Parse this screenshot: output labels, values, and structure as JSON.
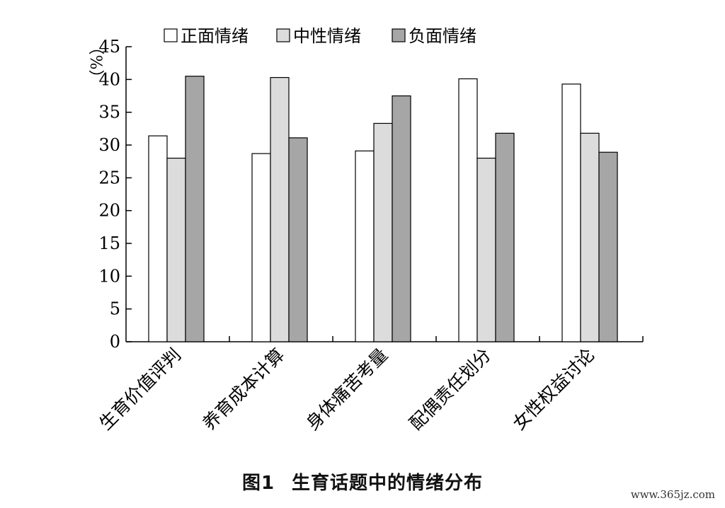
{
  "chart_data": {
    "type": "bar",
    "categories": [
      "生育价值评判",
      "养育成本计算",
      "身体痛苦考量",
      "配偶责任划分",
      "女性权益讨论"
    ],
    "series": [
      {
        "name": "正面情绪",
        "color": "#ffffff",
        "values": [
          31.4,
          28.7,
          29.1,
          40.1,
          39.3
        ]
      },
      {
        "name": "中性情绪",
        "color": "#dcdcdc",
        "values": [
          28.0,
          40.3,
          33.3,
          28.0,
          31.8
        ]
      },
      {
        "name": "负面情绪",
        "color": "#a6a6a6",
        "values": [
          40.5,
          31.1,
          37.5,
          31.8,
          28.9
        ]
      }
    ],
    "ylabel": "%",
    "ylim": [
      0,
      45
    ],
    "yticks": [
      0,
      5,
      10,
      15,
      20,
      25,
      30,
      35,
      40,
      45
    ],
    "legend_position": "top",
    "grid": false
  },
  "caption": {
    "figure_number": "图1",
    "title": "生育话题中的情绪分布"
  },
  "watermark": "www.365jz.com"
}
